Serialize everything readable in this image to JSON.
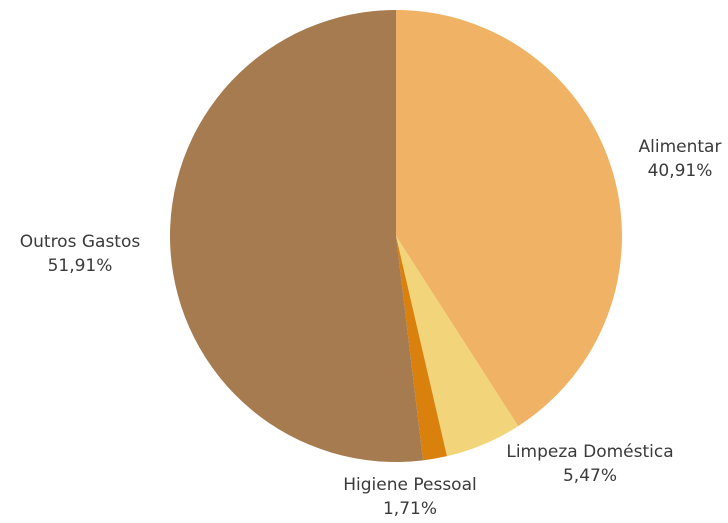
{
  "chart_data": {
    "type": "pie",
    "title": "",
    "slices": [
      {
        "label": "Alimentar",
        "value": 40.91,
        "value_label": "40,91%",
        "color": "#F0B265"
      },
      {
        "label": "Limpeza Doméstica",
        "value": 5.47,
        "value_label": "5,47%",
        "color": "#F2D47A"
      },
      {
        "label": "Higiene Pessoal",
        "value": 1.71,
        "value_label": "1,71%",
        "color": "#DA800C"
      },
      {
        "label": "Outros Gastos",
        "value": 51.91,
        "value_label": "51,91%",
        "color": "#A67B50"
      }
    ],
    "start_angle": "12 o'clock",
    "direction": "clockwise",
    "legend": "none"
  }
}
